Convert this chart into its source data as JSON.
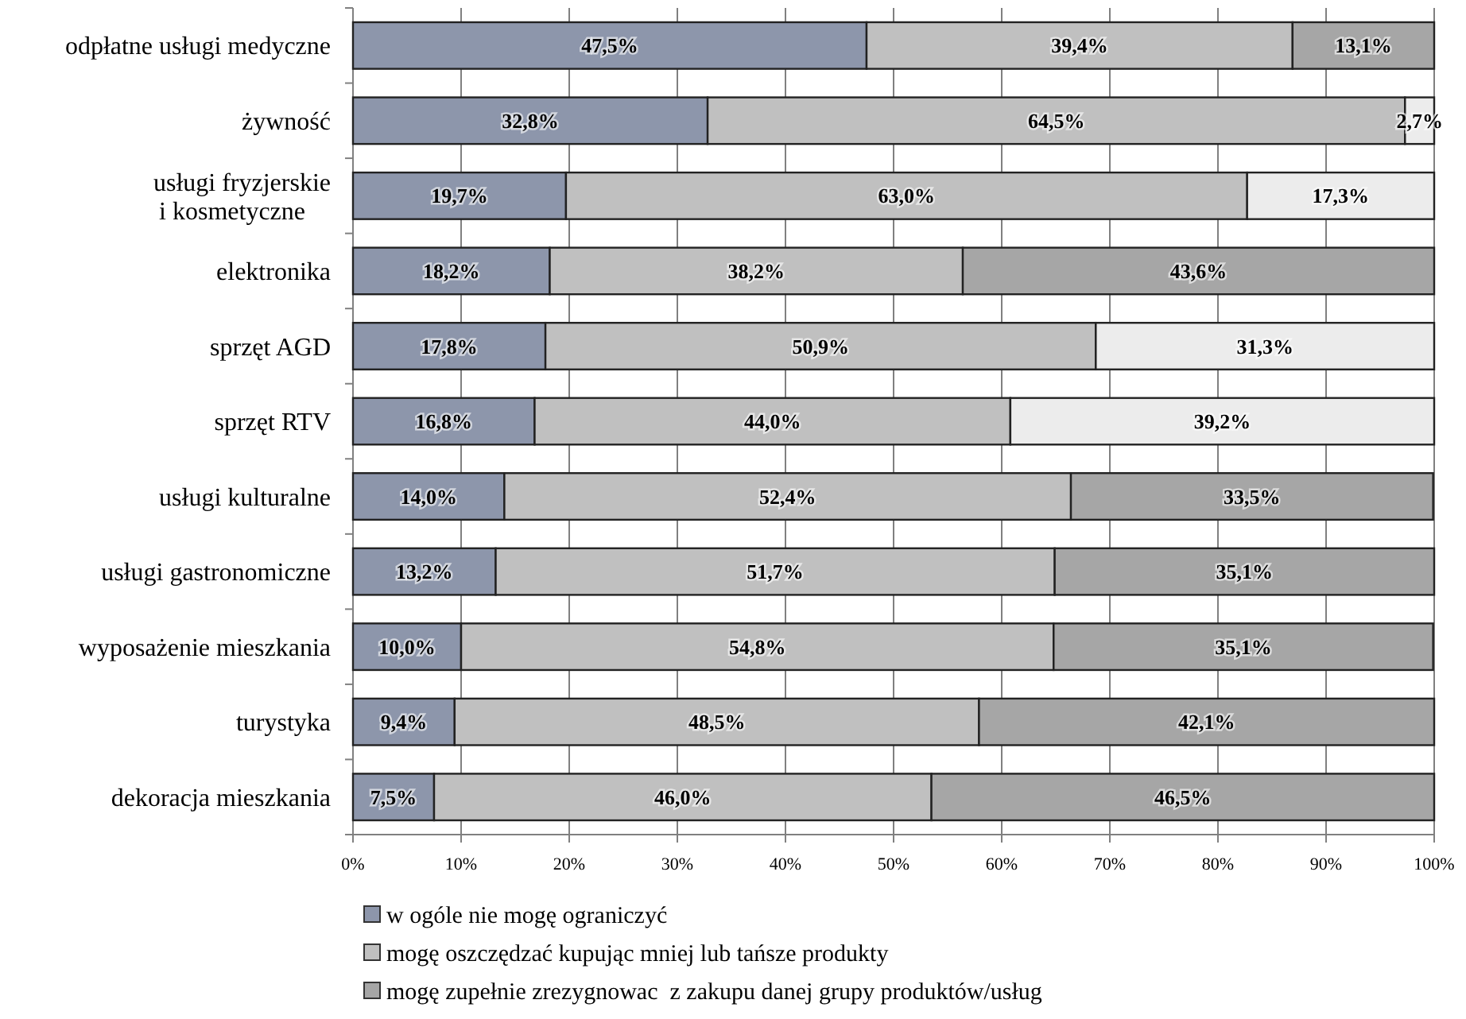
{
  "chart_data": {
    "type": "bar",
    "orientation": "horizontal",
    "stacked": true,
    "categories": [
      "odpłatne usługi medyczne",
      "żywność",
      "usługi fryzjerskie i kosmetyczne",
      "elektronika",
      "sprzęt AGD",
      "sprzęt RTV",
      "usługi kulturalne",
      "usługi gastronomiczne",
      "wyposażenie mieszkania",
      "turystyka",
      "dekoracja mieszkania"
    ],
    "series": [
      {
        "name": "w ogóle nie mogę ograniczyć",
        "color": "#8d96ab",
        "values": [
          47.5,
          32.8,
          19.7,
          18.2,
          17.8,
          16.8,
          14.0,
          13.2,
          10.0,
          9.4,
          7.5
        ],
        "value_labels": [
          "47,5%",
          "32,8%",
          "19,7%",
          "18,2%",
          "17,8%",
          "16,8%",
          "14,0%",
          "13,2%",
          "10,0%",
          "9,4%",
          "7,5%"
        ]
      },
      {
        "name": "mogę oszczędzać kupując mniej lub tańsze produkty",
        "color": "#c0c0c0",
        "values": [
          39.4,
          64.5,
          63.0,
          38.2,
          50.9,
          44.0,
          52.4,
          51.7,
          54.8,
          48.5,
          46.0
        ],
        "value_labels": [
          "39,4%",
          "64,5%",
          "63,0%",
          "38,2%",
          "50,9%",
          "44,0%",
          "52,4%",
          "51,7%",
          "54,8%",
          "48,5%",
          "46,0%"
        ]
      },
      {
        "name": "mogę zupełnie zrezygnowac  z zakupu danej grupy produktów/usług",
        "color": "#a6a6a6",
        "colors": [
          "#a6a6a6",
          "#ececec",
          "#ececec",
          "#a6a6a6",
          "#ececec",
          "#ececec",
          "#a6a6a6",
          "#a6a6a6",
          "#a6a6a6",
          "#a6a6a6",
          "#a6a6a6"
        ],
        "values": [
          13.1,
          2.7,
          17.3,
          43.6,
          31.3,
          39.2,
          33.5,
          35.1,
          35.1,
          42.1,
          46.5
        ],
        "value_labels": [
          "13,1%",
          "2,7%",
          "17,3%",
          "43,6%",
          "31,3%",
          "39,2%",
          "33,5%",
          "35,1%",
          "35,1%",
          "42,1%",
          "46,5%"
        ]
      }
    ],
    "xlim": [
      0,
      100
    ],
    "xticks": [
      {
        "value": 0,
        "label": "0%"
      },
      {
        "value": 10,
        "label": "10%"
      },
      {
        "value": 20,
        "label": "20%"
      },
      {
        "value": 30,
        "label": "30%"
      },
      {
        "value": 40,
        "label": "40%"
      },
      {
        "value": 50,
        "label": "50%"
      },
      {
        "value": 60,
        "label": "60%"
      },
      {
        "value": 70,
        "label": "70%"
      },
      {
        "value": 80,
        "label": "80%"
      },
      {
        "value": 90,
        "label": "90%"
      },
      {
        "value": 100,
        "label": "100%"
      }
    ],
    "grid": "x",
    "legend": "bottom"
  }
}
